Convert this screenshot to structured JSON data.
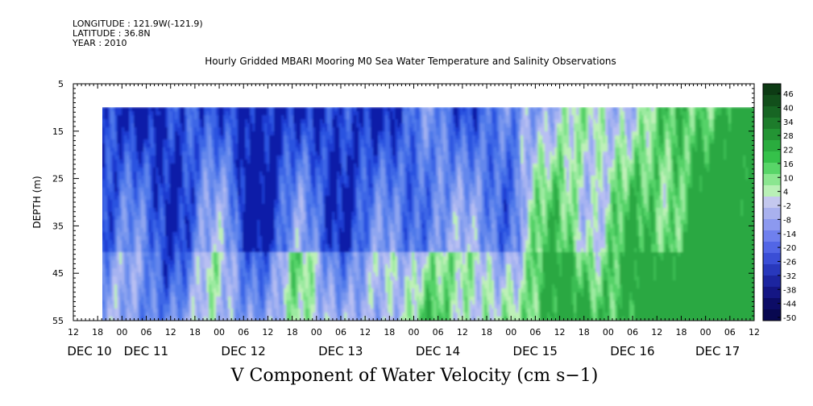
{
  "header": {
    "longitude": "LONGITUDE : 121.9W(-121.9)",
    "latitude": "LATITUDE : 36.8N",
    "year": "YEAR : 2010"
  },
  "chart_data": {
    "type": "heatmap",
    "title": "Hourly Gridded MBARI Mooring M0 Sea Water Temperature and Salinity Observations",
    "xlabel": "V Component of Water Velocity (cm s−1)",
    "ylabel": "DEPTH (m)",
    "ylim": [
      5,
      55
    ],
    "yticks": [
      5,
      15,
      25,
      35,
      45,
      55
    ],
    "data_depth_range": [
      10,
      55
    ],
    "x_range_hours": [
      "DEC 10 12:00",
      "DEC 17 12:00"
    ],
    "data_start": "DEC 10 18:00",
    "hour_ticks": [
      "12",
      "18",
      "00",
      "06",
      "12",
      "18",
      "00",
      "06",
      "12",
      "18",
      "00",
      "06",
      "12",
      "18",
      "00",
      "06",
      "12",
      "18",
      "00",
      "06",
      "12",
      "18",
      "00",
      "06",
      "12",
      "18",
      "00",
      "06",
      "12"
    ],
    "day_labels": [
      "DEC 10",
      "DEC 11",
      "DEC 12",
      "DEC 13",
      "DEC 14",
      "DEC 15",
      "DEC 16",
      "DEC 17"
    ],
    "colorbar_levels": [
      "46",
      "40",
      "34",
      "28",
      "22",
      "16",
      "10",
      "4",
      "-2",
      "-8",
      "-14",
      "-20",
      "-26",
      "-32",
      "-38",
      "-44",
      "-50"
    ],
    "colorbar_colors": [
      "#0d3b14",
      "#124f1b",
      "#176523",
      "#1d7c2b",
      "#239434",
      "#2aac3e",
      "#35c14a",
      "#58d568",
      "#8be690",
      "#b9f0b6",
      "#c4c8ee",
      "#a9b1ee",
      "#8c99ef",
      "#6f80ee",
      "#5266e6",
      "#3a4ed6",
      "#2838bc",
      "#1c25a0",
      "#141684",
      "#0c0c66",
      "#080850"
    ],
    "grid": false,
    "legend": "right colorbar"
  }
}
